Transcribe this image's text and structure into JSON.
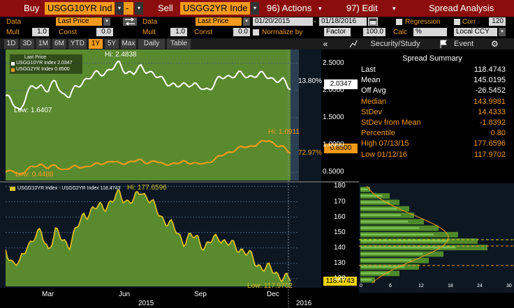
{
  "toolbar": {
    "buy_label": "Buy",
    "buy_ticker": "USGG10YR Ind",
    "minus_label": "-",
    "sell_label": "Sell",
    "sell_ticker": "USGG2YR Inde",
    "actions_label": "96) Actions",
    "edit_label": "97) Edit",
    "title": "Spread Analysis",
    "dropdown_arrow": "▾"
  },
  "params": {
    "data_label": "Data",
    "data1_value": "Last Price",
    "data2_value": "Last Price",
    "start_date": "01/20/2015",
    "end_date": "01/18/2016",
    "regression_label": "Regression",
    "corr_label": "Corr",
    "corr_value": "120",
    "mult_label": "Mult",
    "mult1_value": "1.0",
    "const_label": "Const",
    "const1_value": "0.0",
    "mult2_value": "1.0",
    "const2_value": "0.0",
    "normalize_label": "Normalize by",
    "factor_value": "Factor",
    "factor_num": "100.0",
    "calc_label": "Calc",
    "calc_value": "%",
    "ccy_value": "Local CCY"
  },
  "tabs": [
    "1D",
    "3D",
    "1M",
    "6M",
    "YTD",
    "1Y",
    "5Y",
    "Max",
    "Daily",
    "Table"
  ],
  "selected_tab": "1Y",
  "side_tabs": {
    "collapse": "«",
    "security": "Security/Study",
    "event": "Event"
  },
  "upper_chart": {
    "legend_title": "Last Price",
    "series1_label": "USGG10YR Index 2.0347",
    "series2_label": "USGG2YR Index 0.8500",
    "hi1": "Hi: 2.4838",
    "low1": "Low: 1.6407",
    "hi2": "Hi: 1.0911",
    "low2": "Low: 0.4488",
    "pct1": "13.80%",
    "pct2": "72.97%",
    "last1": "2.0347",
    "last2": "0.8500",
    "yticks": [
      "2.5000",
      "2.0000",
      "1.5000",
      "1.0000",
      "0.5000"
    ]
  },
  "lower_chart": {
    "legend": "USGG10YR Index - USGG2YR Index 118.4743",
    "hi": "Hi: 177.6596",
    "low": "Low: 117.9702",
    "last": "118.4743",
    "yticks": [
      "180",
      "170",
      "160",
      "150",
      "140",
      "130",
      "120"
    ],
    "xticks": [
      "Mar",
      "Jun",
      "Sep",
      "Dec"
    ],
    "year_left": "2015",
    "year_right": "2016",
    "hist_ticks": [
      "0",
      "6",
      "12",
      "18",
      "24",
      "30"
    ]
  },
  "summary": {
    "title": "Spread Summary",
    "rows": [
      {
        "k": "Last",
        "v": "118.4743",
        "c": "wt"
      },
      {
        "k": "Mean",
        "v": "145.0195",
        "c": "wt"
      },
      {
        "k": "Off Avg",
        "v": "-26.5452",
        "c": "wt"
      },
      {
        "k": "Median",
        "v": "143.9981",
        "c": "or"
      },
      {
        "k": "StDev",
        "v": "14.4333",
        "c": "or"
      },
      {
        "k": "StDev from Mean",
        "v": "-1.8392",
        "c": "or"
      },
      {
        "k": "Percentile",
        "v": "0.80",
        "c": "or"
      },
      {
        "k": "High 07/13/15",
        "v": "177.6596",
        "c": "or"
      },
      {
        "k": "Low 01/12/16",
        "v": "117.9702",
        "c": "or"
      }
    ]
  },
  "chart_data": [
    {
      "type": "line",
      "title": "",
      "series": [
        {
          "name": "USGG10YR Index",
          "values": [
            1.9,
            1.75,
            1.64,
            1.95,
            2.05,
            2.1,
            2.0,
            2.15,
            1.95,
            1.9,
            2.05,
            2.2,
            2.25,
            2.3,
            2.35,
            2.4,
            2.48,
            2.35,
            2.3,
            2.42,
            2.38,
            2.25,
            2.2,
            2.15,
            2.05,
            2.1,
            2.15,
            2.05,
            2.0,
            2.1,
            2.2,
            2.25,
            2.3,
            2.28,
            2.25,
            2.3,
            2.27,
            2.25,
            2.2,
            2.15,
            2.03
          ]
        },
        {
          "name": "USGG2YR Index",
          "values": [
            0.5,
            0.52,
            0.46,
            0.55,
            0.6,
            0.65,
            0.58,
            0.62,
            0.55,
            0.58,
            0.6,
            0.6,
            0.62,
            0.65,
            0.68,
            0.7,
            0.66,
            0.68,
            0.7,
            0.72,
            0.68,
            0.7,
            0.65,
            0.66,
            0.65,
            0.7,
            0.68,
            0.65,
            0.66,
            0.72,
            0.78,
            0.85,
            0.9,
            0.95,
            0.97,
            1.0,
            1.05,
            1.09,
            1.0,
            0.95,
            0.85
          ]
        }
      ],
      "ylim": [
        0.35,
        2.75
      ]
    },
    {
      "type": "line",
      "title": "",
      "series": [
        {
          "name": "USGG10YR Index - USGG2YR Index",
          "values": [
            139,
            131,
            129,
            142,
            147,
            149,
            140,
            150,
            145,
            143,
            152,
            162,
            164,
            166,
            168,
            170,
            175,
            171,
            170,
            177.66,
            173,
            165,
            160,
            156,
            150,
            145,
            147,
            146,
            141,
            144,
            148,
            143,
            141,
            140,
            136,
            131,
            128,
            126,
            124,
            121,
            118.47
          ]
        }
      ],
      "ylim": [
        115,
        182
      ]
    },
    {
      "type": "bar",
      "title": "",
      "categories": [
        "122",
        "126",
        "130",
        "134",
        "138",
        "142",
        "146",
        "150",
        "154",
        "158",
        "162",
        "166",
        "170",
        "174",
        "178"
      ],
      "values": [
        3,
        8,
        12,
        14,
        17,
        26,
        24,
        20,
        16,
        13,
        11,
        10,
        8,
        6,
        2
      ]
    }
  ]
}
